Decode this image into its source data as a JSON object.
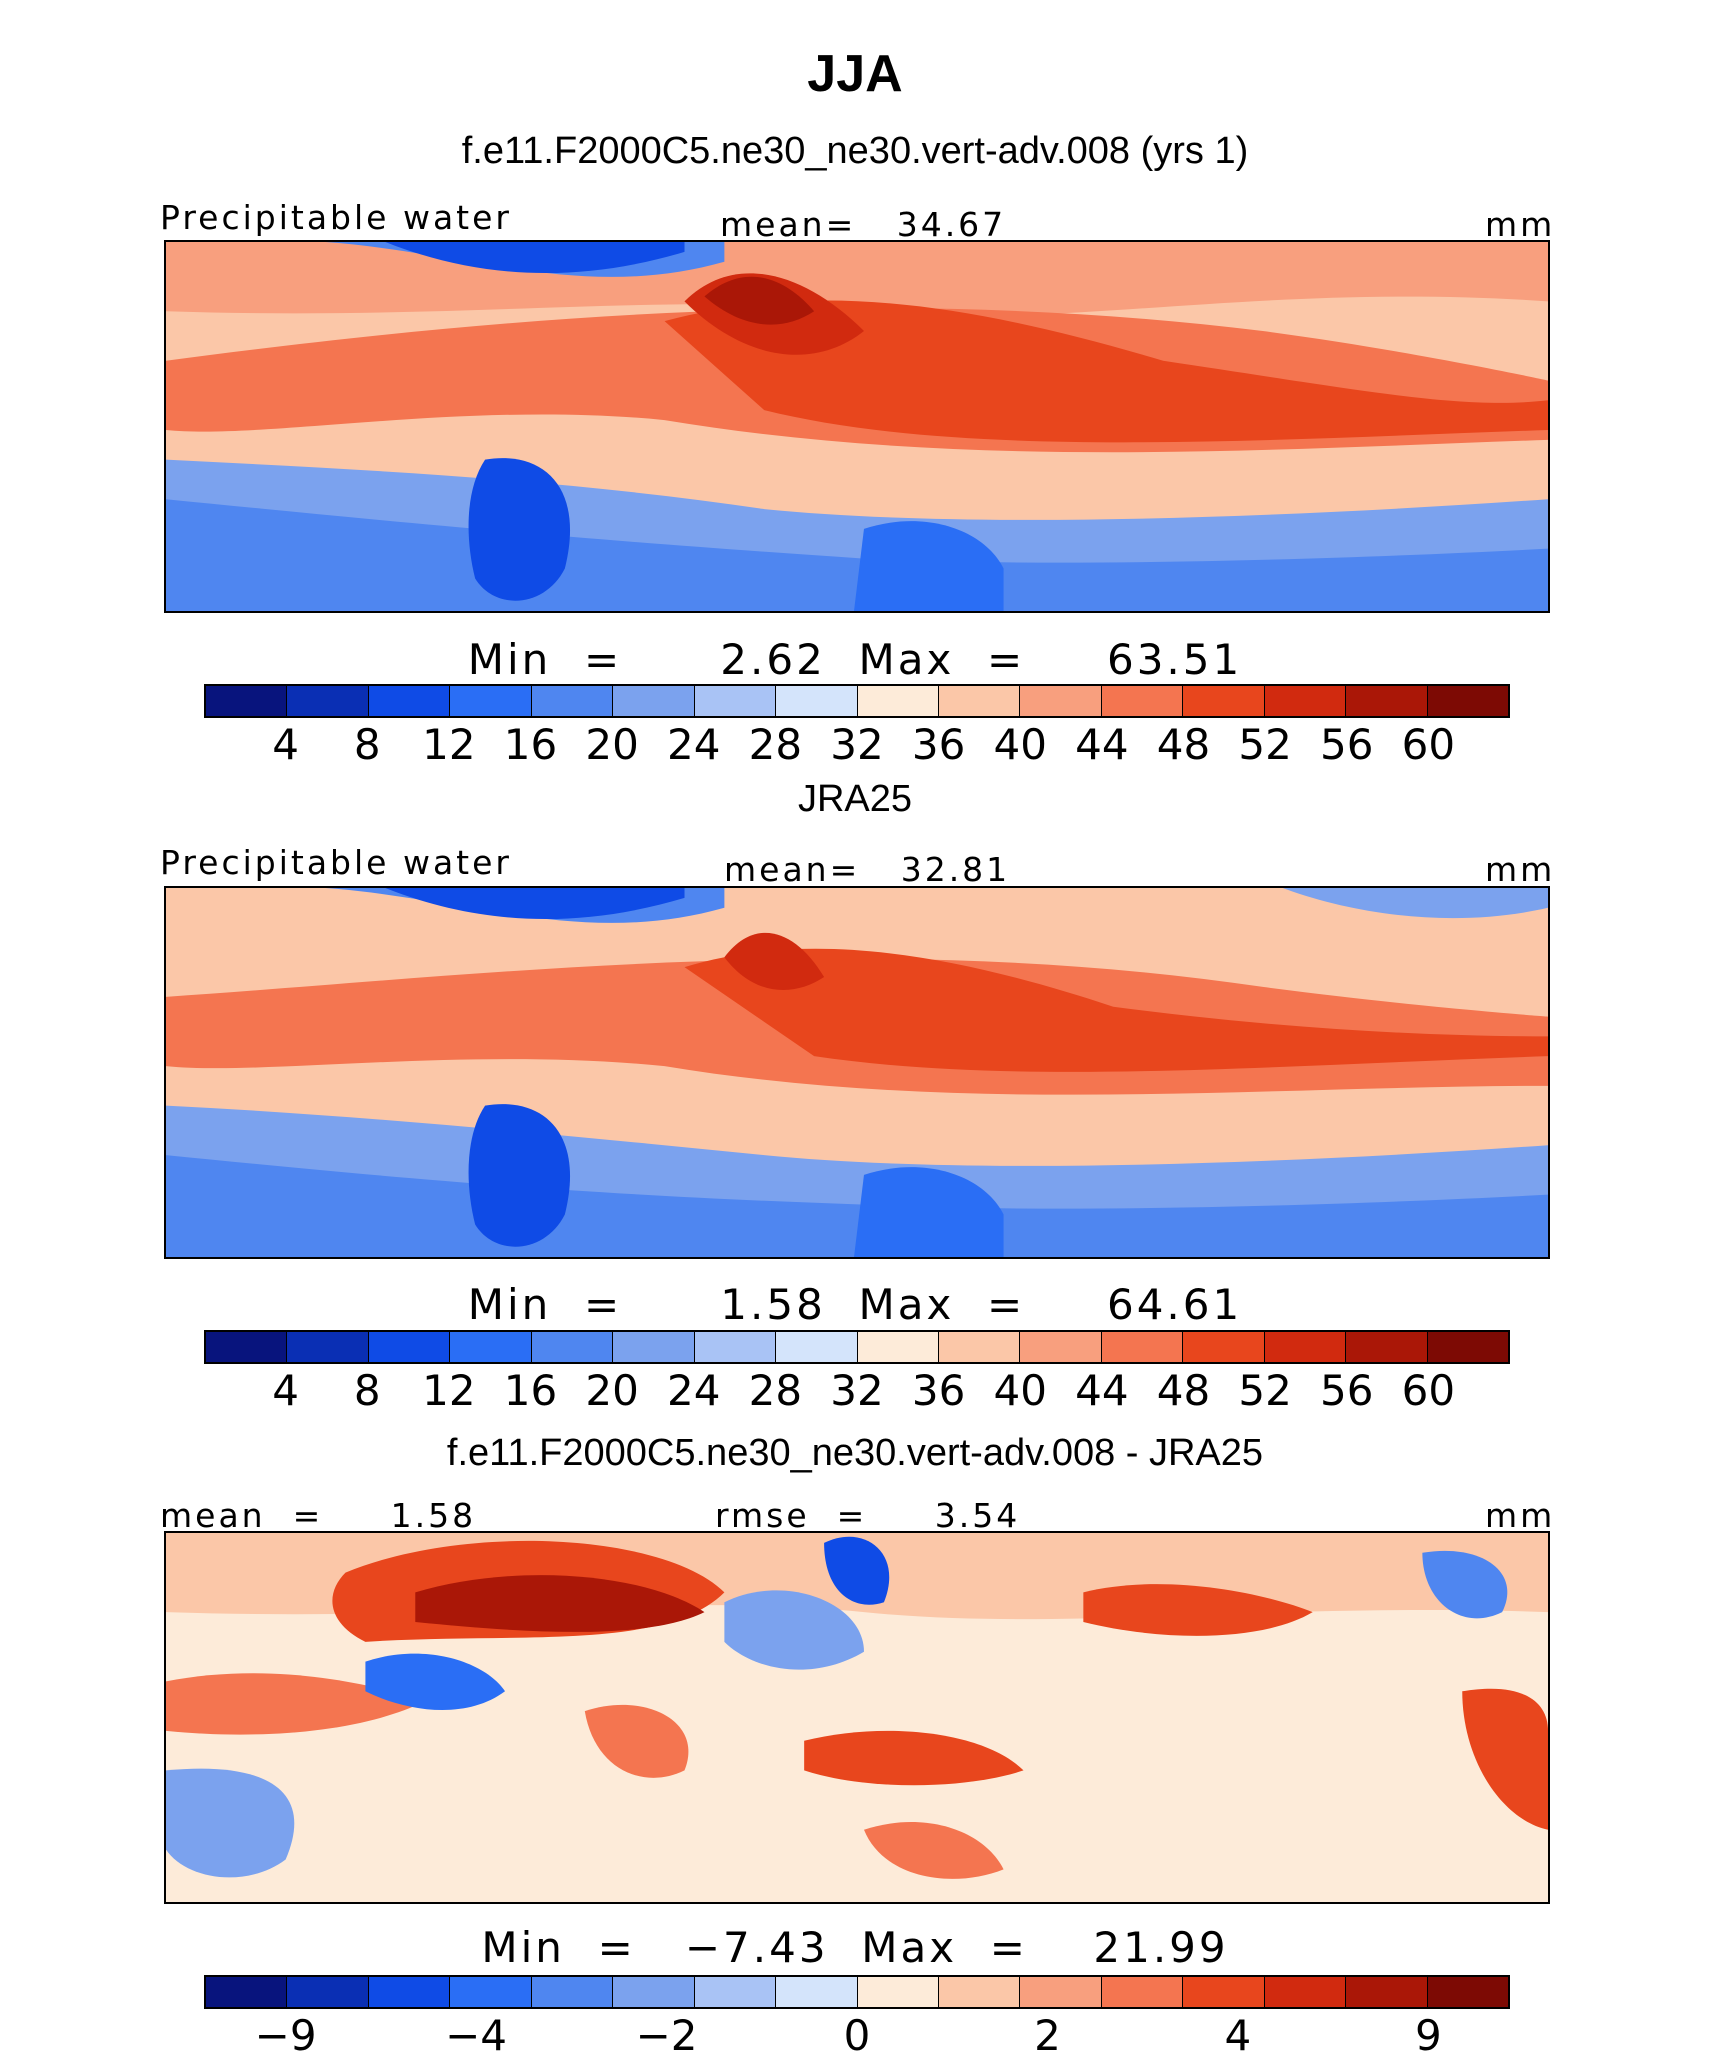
{
  "figure_title": "JJA",
  "units": "mm",
  "variable": "Precipitable water",
  "palette": [
    "#08147d",
    "#0a2fb4",
    "#0f4be6",
    "#2a6ef5",
    "#4f86f0",
    "#7ba2ee",
    "#a9c3f5",
    "#d4e4fb",
    "#fdebd9",
    "#fbc7a8",
    "#f89f7e",
    "#f47550",
    "#e8461d",
    "#d12a0f",
    "#aa1707",
    "#7d0a04"
  ],
  "panels": [
    {
      "title": "f.e11.F2000C5.ne30_ne30.vert-adv.008 (yrs 1)",
      "left_label": "Precipitable water",
      "center_label": "mean=   34.67",
      "right_label": "mm",
      "minmax": "Min  =      2.62  Max  =     63.51",
      "tick_labels": [
        "4",
        "8",
        "12",
        "16",
        "20",
        "24",
        "28",
        "32",
        "36",
        "40",
        "44",
        "48",
        "52",
        "56",
        "60"
      ],
      "min": 2.62,
      "max": 63.51,
      "mean": 34.67
    },
    {
      "title": "JRA25",
      "left_label": "Precipitable water",
      "center_label": "mean=   32.81",
      "right_label": "mm",
      "minmax": "Min  =      1.58  Max  =     64.61",
      "tick_labels": [
        "4",
        "8",
        "12",
        "16",
        "20",
        "24",
        "28",
        "32",
        "36",
        "40",
        "44",
        "48",
        "52",
        "56",
        "60"
      ],
      "min": 1.58,
      "max": 64.61,
      "mean": 32.81
    },
    {
      "title": "f.e11.F2000C5.ne30_ne30.vert-adv.008 - JRA25",
      "left_label": "mean  =     1.58",
      "center_label": "rmse  =     3.54",
      "right_label": "mm",
      "minmax": "Min  =   −7.43  Max  =    21.99",
      "tick_labels": [
        "−9",
        "−4",
        "−2",
        "0",
        "2",
        "4",
        "9"
      ],
      "min": -7.43,
      "max": 21.99,
      "mean": 1.58,
      "rmse": 3.54
    }
  ]
}
